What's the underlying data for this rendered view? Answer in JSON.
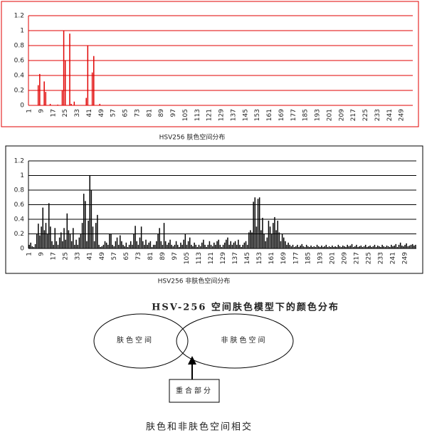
{
  "chart_data": [
    {
      "type": "bar",
      "title": "HSV256 肤色空间分布",
      "color": "#e00000",
      "grid_color": "#e00000",
      "frame_color": "#e00000",
      "grid": true,
      "ylim": [
        0,
        1.2
      ],
      "yticks": [
        0,
        0.2,
        0.4,
        0.6,
        0.8,
        1,
        1.2
      ],
      "categories": [
        1,
        null,
        null,
        null,
        null,
        null,
        null,
        null,
        9,
        null,
        null,
        null,
        null,
        null,
        null,
        null,
        17,
        null,
        null,
        null,
        null,
        null,
        null,
        null,
        25,
        null,
        null,
        null,
        null,
        null,
        null,
        null,
        33,
        null,
        null,
        null,
        null,
        null,
        null,
        null,
        41,
        null,
        null,
        null,
        null,
        null,
        null,
        null,
        49,
        null,
        null,
        null,
        null,
        null,
        null,
        null,
        57,
        null,
        null,
        null,
        null,
        null,
        null,
        null,
        65,
        null,
        null,
        null,
        null,
        null,
        null,
        null,
        73,
        null,
        null,
        null,
        null,
        null,
        null,
        null,
        81,
        null,
        null,
        null,
        null,
        null,
        null,
        null,
        89,
        null,
        null,
        null,
        null,
        null,
        null,
        null,
        97,
        null,
        null,
        null,
        null,
        null,
        null,
        null,
        105,
        null,
        null,
        null,
        null,
        null,
        null,
        null,
        113,
        null,
        null,
        null,
        null,
        null,
        null,
        null,
        121,
        null,
        null,
        null,
        null,
        null,
        null,
        null,
        129,
        null,
        null,
        null,
        null,
        null,
        null,
        null,
        137,
        null,
        null,
        null,
        null,
        null,
        null,
        null,
        145,
        null,
        null,
        null,
        null,
        null,
        null,
        null,
        153,
        null,
        null,
        null,
        null,
        null,
        null,
        null,
        161,
        null,
        null,
        null,
        null,
        null,
        null,
        null,
        169,
        null,
        null,
        null,
        null,
        null,
        null,
        null,
        177,
        null,
        null,
        null,
        null,
        null,
        null,
        null,
        185,
        null,
        null,
        null,
        null,
        null,
        null,
        null,
        193,
        null,
        null,
        null,
        null,
        null,
        null,
        null,
        201,
        null,
        null,
        null,
        null,
        null,
        null,
        null,
        209,
        null,
        null,
        null,
        null,
        null,
        null,
        null,
        217,
        null,
        null,
        null,
        null,
        null,
        null,
        null,
        225,
        null,
        null,
        null,
        null,
        null,
        null,
        null,
        233,
        null,
        null,
        null,
        null,
        null,
        null,
        null,
        241,
        null,
        null,
        null,
        null,
        null,
        null,
        null,
        249,
        null,
        null,
        null,
        null,
        null,
        null,
        null
      ],
      "values": [
        0,
        0,
        0,
        0,
        0,
        0,
        0.27,
        0.42,
        0,
        0,
        0.32,
        0.18,
        0,
        0,
        0.02,
        0,
        0,
        0,
        0,
        0.01,
        0,
        0,
        0.2,
        1.0,
        0.6,
        0,
        0,
        0.96,
        0.02,
        0,
        0.05,
        0,
        0,
        0,
        0,
        0,
        0,
        0,
        0.1,
        0.8,
        0,
        0,
        0.44,
        0.66,
        0,
        0,
        0,
        0.02,
        0,
        0,
        0,
        0,
        0,
        0,
        0,
        0,
        0,
        0,
        0,
        0,
        0,
        0,
        0,
        0,
        0,
        0,
        0,
        0,
        0,
        0,
        0,
        0,
        0,
        0,
        0,
        0,
        0,
        0,
        0,
        0,
        0,
        0,
        0,
        0,
        0,
        0,
        0,
        0,
        0,
        0,
        0,
        0,
        0,
        0,
        0,
        0,
        0,
        0,
        0,
        0,
        0,
        0,
        0,
        0,
        0,
        0,
        0,
        0,
        0,
        0,
        0,
        0,
        0,
        0,
        0,
        0,
        0,
        0,
        0,
        0,
        0,
        0,
        0,
        0,
        0,
        0,
        0,
        0,
        0,
        0,
        0,
        0,
        0,
        0,
        0,
        0,
        0,
        0,
        0,
        0,
        0,
        0,
        0,
        0,
        0,
        0,
        0,
        0,
        0,
        0,
        0,
        0,
        0,
        0,
        0,
        0,
        0,
        0,
        0,
        0,
        0,
        0,
        0,
        0,
        0,
        0,
        0,
        0,
        0,
        0,
        0,
        0,
        0,
        0,
        0,
        0,
        0,
        0,
        0,
        0,
        0,
        0,
        0,
        0,
        0,
        0,
        0,
        0,
        0,
        0,
        0,
        0,
        0,
        0,
        0,
        0,
        0,
        0,
        0,
        0,
        0,
        0,
        0,
        0,
        0,
        0,
        0,
        0,
        0,
        0,
        0,
        0,
        0,
        0,
        0,
        0,
        0,
        0,
        0,
        0,
        0,
        0,
        0,
        0,
        0,
        0,
        0,
        0,
        0,
        0,
        0,
        0,
        0,
        0,
        0,
        0,
        0,
        0,
        0,
        0,
        0,
        0,
        0,
        0,
        0,
        0,
        0,
        0,
        0,
        0,
        0,
        0,
        0,
        0,
        0,
        0
      ]
    },
    {
      "type": "bar",
      "title": "HSV256 非肤色空间分布",
      "color": "#000000",
      "grid_color": "#000000",
      "frame_color": "#000000",
      "grid": true,
      "ylim": [
        0,
        1.2
      ],
      "yticks": [
        0,
        0.2,
        0.4,
        0.6,
        0.8,
        1,
        1.2
      ],
      "categories": [
        1,
        null,
        null,
        null,
        null,
        null,
        null,
        null,
        9,
        null,
        null,
        null,
        null,
        null,
        null,
        null,
        17,
        null,
        null,
        null,
        null,
        null,
        null,
        null,
        25,
        null,
        null,
        null,
        null,
        null,
        null,
        null,
        33,
        null,
        null,
        null,
        null,
        null,
        null,
        null,
        41,
        null,
        null,
        null,
        null,
        null,
        null,
        null,
        49,
        null,
        null,
        null,
        null,
        null,
        null,
        null,
        57,
        null,
        null,
        null,
        null,
        null,
        null,
        null,
        65,
        null,
        null,
        null,
        null,
        null,
        null,
        null,
        73,
        null,
        null,
        null,
        null,
        null,
        null,
        null,
        81,
        null,
        null,
        null,
        null,
        null,
        null,
        null,
        89,
        null,
        null,
        null,
        null,
        null,
        null,
        null,
        97,
        null,
        null,
        null,
        null,
        null,
        null,
        null,
        105,
        null,
        null,
        null,
        null,
        null,
        null,
        null,
        113,
        null,
        null,
        null,
        null,
        null,
        null,
        null,
        121,
        null,
        null,
        null,
        null,
        null,
        null,
        null,
        129,
        null,
        null,
        null,
        null,
        null,
        null,
        null,
        137,
        null,
        null,
        null,
        null,
        null,
        null,
        null,
        145,
        null,
        null,
        null,
        null,
        null,
        null,
        null,
        153,
        null,
        null,
        null,
        null,
        null,
        null,
        null,
        161,
        null,
        null,
        null,
        null,
        null,
        null,
        null,
        169,
        null,
        null,
        null,
        null,
        null,
        null,
        null,
        177,
        null,
        null,
        null,
        null,
        null,
        null,
        null,
        185,
        null,
        null,
        null,
        null,
        null,
        null,
        null,
        193,
        null,
        null,
        null,
        null,
        null,
        null,
        null,
        201,
        null,
        null,
        null,
        null,
        null,
        null,
        null,
        209,
        null,
        null,
        null,
        null,
        null,
        null,
        null,
        217,
        null,
        null,
        null,
        null,
        null,
        null,
        null,
        225,
        null,
        null,
        null,
        null,
        null,
        null,
        null,
        233,
        null,
        null,
        null,
        null,
        null,
        null,
        null,
        241,
        null,
        null,
        null,
        null,
        null,
        null,
        null,
        249,
        null,
        null,
        null,
        null,
        null,
        null,
        null
      ],
      "values": [
        0.05,
        0.08,
        0.03,
        0.02,
        0.06,
        0.2,
        0.34,
        0.18,
        0.3,
        0.56,
        0.25,
        0.35,
        0.2,
        0.62,
        0.3,
        0.1,
        0.05,
        0.28,
        0.1,
        0.05,
        0.15,
        0.22,
        0.1,
        0.28,
        0.12,
        0.48,
        0.25,
        0.2,
        0.1,
        0.28,
        0.05,
        0.12,
        0.05,
        0.15,
        0.2,
        0.35,
        0.75,
        0.65,
        0.1,
        0.38,
        1.0,
        0.8,
        0.3,
        0.1,
        0.35,
        0.46,
        0.05,
        0.02,
        0.03,
        0.05,
        0.1,
        0.08,
        0.05,
        0.2,
        0.2,
        0.05,
        0.03,
        0.1,
        0.15,
        0.05,
        0.18,
        0.1,
        0.05,
        0.03,
        0.08,
        0.02,
        0.05,
        0.1,
        0.05,
        0.2,
        0.31,
        0.1,
        0.05,
        0.15,
        0.3,
        0.1,
        0.05,
        0.12,
        0.05,
        0.08,
        0.1,
        0.02,
        0.05,
        0.05,
        0.1,
        0.2,
        0.28,
        0.1,
        0.05,
        0.35,
        0.1,
        0.05,
        0.08,
        0.12,
        0.05,
        0.03,
        0.05,
        0.1,
        0.05,
        0.02,
        0.08,
        0.05,
        0.12,
        0.2,
        0.05,
        0.1,
        0.15,
        0.05,
        0.03,
        0.08,
        0.05,
        0.02,
        0.05,
        0.03,
        0.08,
        0.12,
        0.05,
        0.02,
        0.05,
        0.1,
        0.05,
        0.03,
        0.08,
        0.05,
        0.1,
        0.12,
        0.05,
        0.02,
        0.05,
        0.08,
        0.12,
        0.15,
        0.05,
        0.1,
        0.05,
        0.08,
        0.1,
        0.05,
        0.12,
        0.05,
        0.02,
        0.05,
        0.08,
        0.1,
        0.05,
        0.22,
        0.25,
        0.22,
        0.64,
        0.7,
        0.3,
        0.68,
        0.7,
        0.25,
        0.42,
        0.2,
        0.1,
        0.15,
        0.38,
        0.3,
        0.2,
        0.35,
        0.43,
        0.25,
        0.38,
        0.22,
        0.1,
        0.2,
        0.15,
        0.1,
        0.05,
        0.08,
        0.05,
        0.03,
        0.05,
        0.02,
        0.03,
        0.05,
        0.02,
        0.04,
        0.06,
        0.03,
        0.02,
        0.05,
        0.03,
        0.02,
        0.04,
        0.02,
        0.03,
        0.02,
        0.05,
        0.03,
        0.02,
        0.04,
        0.02,
        0.03,
        0.05,
        0.02,
        0.03,
        0.02,
        0.04,
        0.02,
        0.03,
        0.02,
        0.05,
        0.03,
        0.02,
        0.04,
        0.03,
        0.02,
        0.05,
        0.03,
        0.04,
        0.06,
        0.02,
        0.03,
        0.05,
        0.02,
        0.03,
        0.04,
        0.02,
        0.03,
        0.05,
        0.02,
        0.03,
        0.04,
        0.02,
        0.03,
        0.05,
        0.02,
        0.04,
        0.03,
        0.02,
        0.05,
        0.03,
        0.02,
        0.04,
        0.03,
        0.02,
        0.05,
        0.03,
        0.04,
        0.06,
        0.02,
        0.05,
        0.08,
        0.04,
        0.03,
        0.05,
        0.07,
        0.03,
        0.04,
        0.05,
        0.06,
        0.04,
        0.05
      ]
    }
  ],
  "figure_caption": "HSV-256 空间肤色模型下的颜色分布",
  "diagram": {
    "nodes": [
      {
        "label": "肤色空间"
      },
      {
        "label": "非肤色空间"
      },
      {
        "label": "重合部分"
      }
    ],
    "caption": "肤色和非肤色空间相交"
  }
}
